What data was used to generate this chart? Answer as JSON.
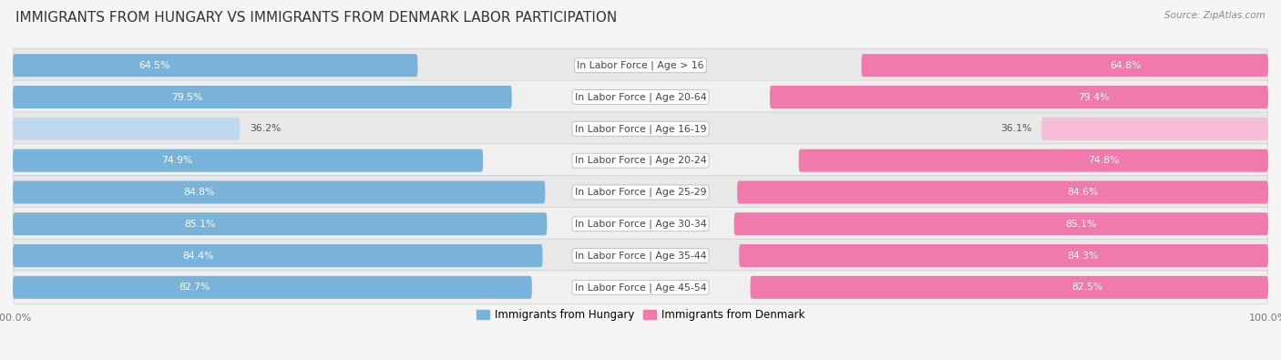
{
  "title": "IMMIGRANTS FROM HUNGARY VS IMMIGRANTS FROM DENMARK LABOR PARTICIPATION",
  "source": "Source: ZipAtlas.com",
  "categories": [
    "In Labor Force | Age > 16",
    "In Labor Force | Age 20-64",
    "In Labor Force | Age 16-19",
    "In Labor Force | Age 20-24",
    "In Labor Force | Age 25-29",
    "In Labor Force | Age 30-34",
    "In Labor Force | Age 35-44",
    "In Labor Force | Age 45-54"
  ],
  "hungary_values": [
    64.5,
    79.5,
    36.2,
    74.9,
    84.8,
    85.1,
    84.4,
    82.7
  ],
  "denmark_values": [
    64.8,
    79.4,
    36.1,
    74.8,
    84.6,
    85.1,
    84.3,
    82.5
  ],
  "hungary_color": "#7ab3d9",
  "hungary_light_color": "#c0d8ee",
  "denmark_color": "#f07aab",
  "denmark_light_color": "#f5bcd5",
  "row_bg_odd": "#e8e8e8",
  "row_bg_even": "#f0f0f0",
  "max_value": 100.0,
  "legend_hungary": "Immigrants from Hungary",
  "legend_denmark": "Immigrants from Denmark",
  "title_fontsize": 11,
  "label_fontsize": 7.8,
  "value_fontsize": 7.8,
  "axis_label_fontsize": 8.0,
  "bg_color": "#f5f5f5"
}
